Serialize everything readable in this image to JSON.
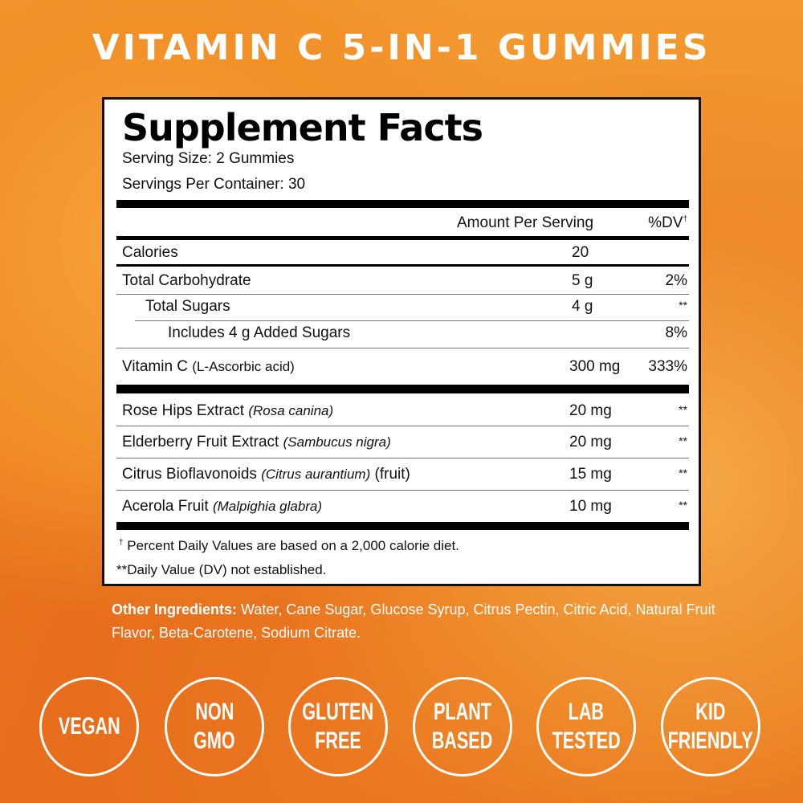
{
  "title": "VITAMIN C 5-IN-1 GUMMIES",
  "facts": {
    "heading": "Supplement Facts",
    "serving_size": "Serving Size: 2 Gummies",
    "servings_per_container": "Servings Per Container: 30",
    "col_amount": "Amount Per Serving",
    "col_dv": "%DV",
    "dagger": "†",
    "rows": [
      {
        "name": "Calories",
        "amount": "20",
        "dv": ""
      },
      {
        "name": "Total Carbohydrate",
        "amount": "5 g",
        "dv": "2%"
      },
      {
        "name": "Total Sugars",
        "amount": "4 g",
        "dv": "**"
      },
      {
        "name": "Includes 4 g Added Sugars",
        "amount": "",
        "dv": "8%"
      },
      {
        "name": "Vitamin C",
        "sub": "(L-Ascorbic acid)",
        "amount": "300 mg",
        "dv": "333%"
      }
    ],
    "blend": [
      {
        "name": "Rose Hips Extract",
        "latin": "(Rosa canina)",
        "extra": "",
        "amount": "20 mg",
        "dv": "**"
      },
      {
        "name": "Elderberry Fruit Extract",
        "latin": "(Sambucus nigra)",
        "extra": "",
        "amount": "20 mg",
        "dv": "**"
      },
      {
        "name": "Citrus Bioflavonoids",
        "latin": "(Citrus aurantium)",
        "extra": "(fruit)",
        "amount": "15 mg",
        "dv": "**"
      },
      {
        "name": "Acerola Fruit",
        "latin": "(Malpighia glabra)",
        "extra": "",
        "amount": "10 mg",
        "dv": "**"
      }
    ],
    "footnote1": "Percent Daily Values are based on a 2,000 calorie diet.",
    "footnote2": "**Daily Value (DV) not established."
  },
  "other_ingredients": {
    "label": "Other Ingredients:",
    "text": " Water, Cane Sugar, Glucose Syrup, Citrus Pectin, Citric Acid, Natural Fruit Flavor, Beta-Carotene, Sodium Citrate."
  },
  "badges": [
    [
      "VEGAN"
    ],
    [
      "NON",
      "GMO"
    ],
    [
      "GLUTEN",
      "FREE"
    ],
    [
      "PLANT",
      "BASED"
    ],
    [
      "LAB",
      "TESTED"
    ],
    [
      "KID",
      "FRIENDLY"
    ]
  ],
  "colors": {
    "background": "#ef8a28",
    "panel": "#ffffff",
    "border": "#111111"
  }
}
